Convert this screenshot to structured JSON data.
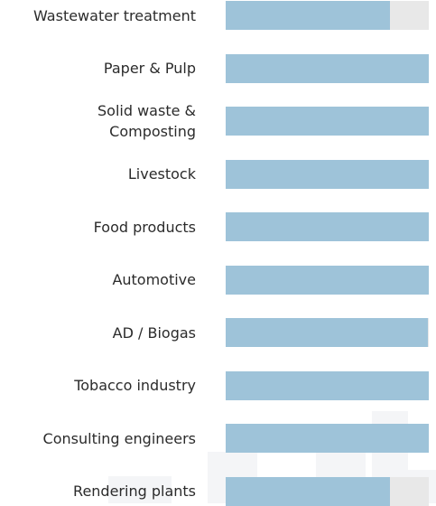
{
  "chart_data": {
    "type": "bar",
    "orientation": "horizontal",
    "categories": [
      "Wastewater treatment",
      "Paper & Pulp",
      "Solid waste &\nComposting",
      "Livestock",
      "Food products",
      "Automotive",
      "AD / Biogas",
      "Tobacco industry",
      "Consulting engineers",
      "Rendering plants"
    ],
    "values": [
      81,
      100,
      100,
      100,
      100,
      100,
      99.5,
      100,
      100,
      81
    ],
    "ylim": [
      0,
      100
    ],
    "colors": {
      "bar": "#9ec3d9",
      "track": "#e8e8e8",
      "label": "#2b2b2b"
    }
  }
}
